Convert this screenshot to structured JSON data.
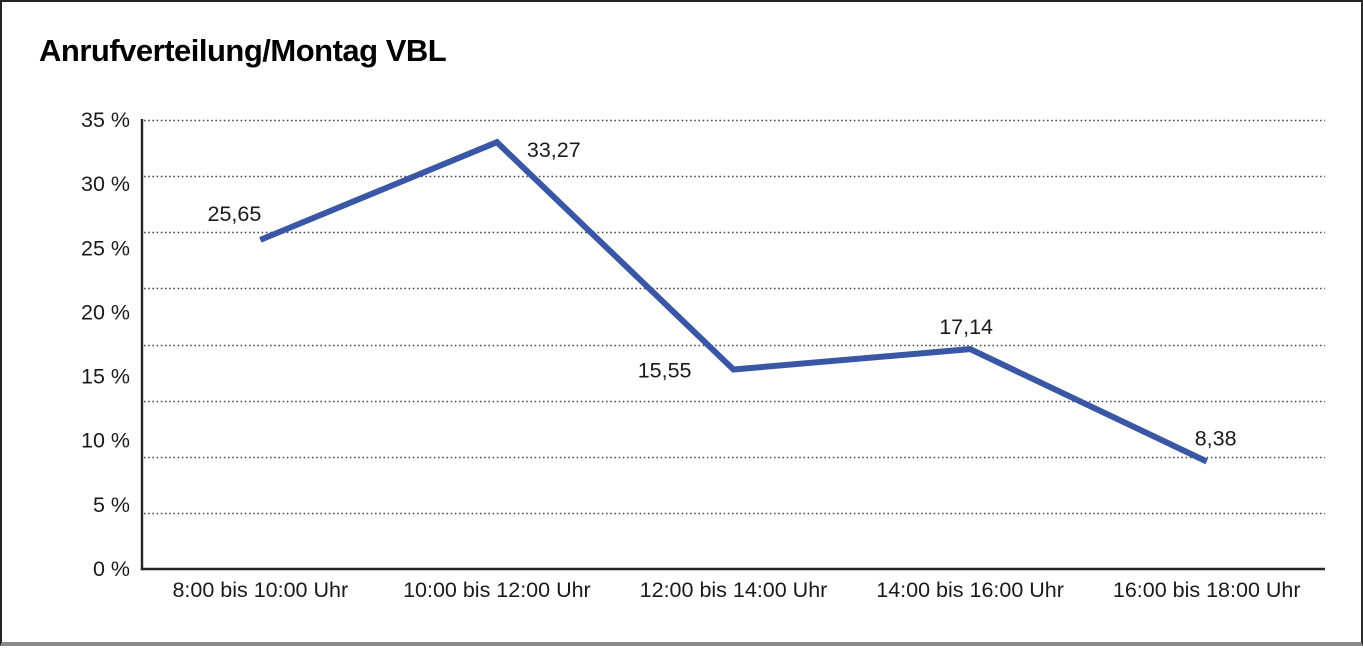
{
  "title": "Anrufverteilung/Montag VBL",
  "chart_data": {
    "type": "line",
    "title": "Anrufverteilung/Montag VBL",
    "categories": [
      "8:00 bis 10:00 Uhr",
      "10:00 bis 12:00 Uhr",
      "12:00 bis 14:00 Uhr",
      "14:00 bis 16:00 Uhr",
      "16:00 bis 18:00 Uhr"
    ],
    "values": [
      25.65,
      33.27,
      15.55,
      17.14,
      8.38
    ],
    "data_labels": [
      "25,65",
      "33,27",
      "15,55",
      "17,14",
      "8,38"
    ],
    "y_ticks": [
      "35 %",
      "30 %",
      "25 %",
      "20 %",
      "15 %",
      "10 %",
      "5 %",
      "0 %"
    ],
    "ylim": [
      0,
      35
    ],
    "xlabel": "",
    "ylabel": "",
    "grid": "horizontal-dotted",
    "gridline_count": 8,
    "legend": "none",
    "colors": {
      "line": "#3a57a6",
      "axis": "#242424",
      "gridline": "#4a4a4a",
      "text": "#1a1a1a",
      "background": "#ffffff"
    }
  }
}
